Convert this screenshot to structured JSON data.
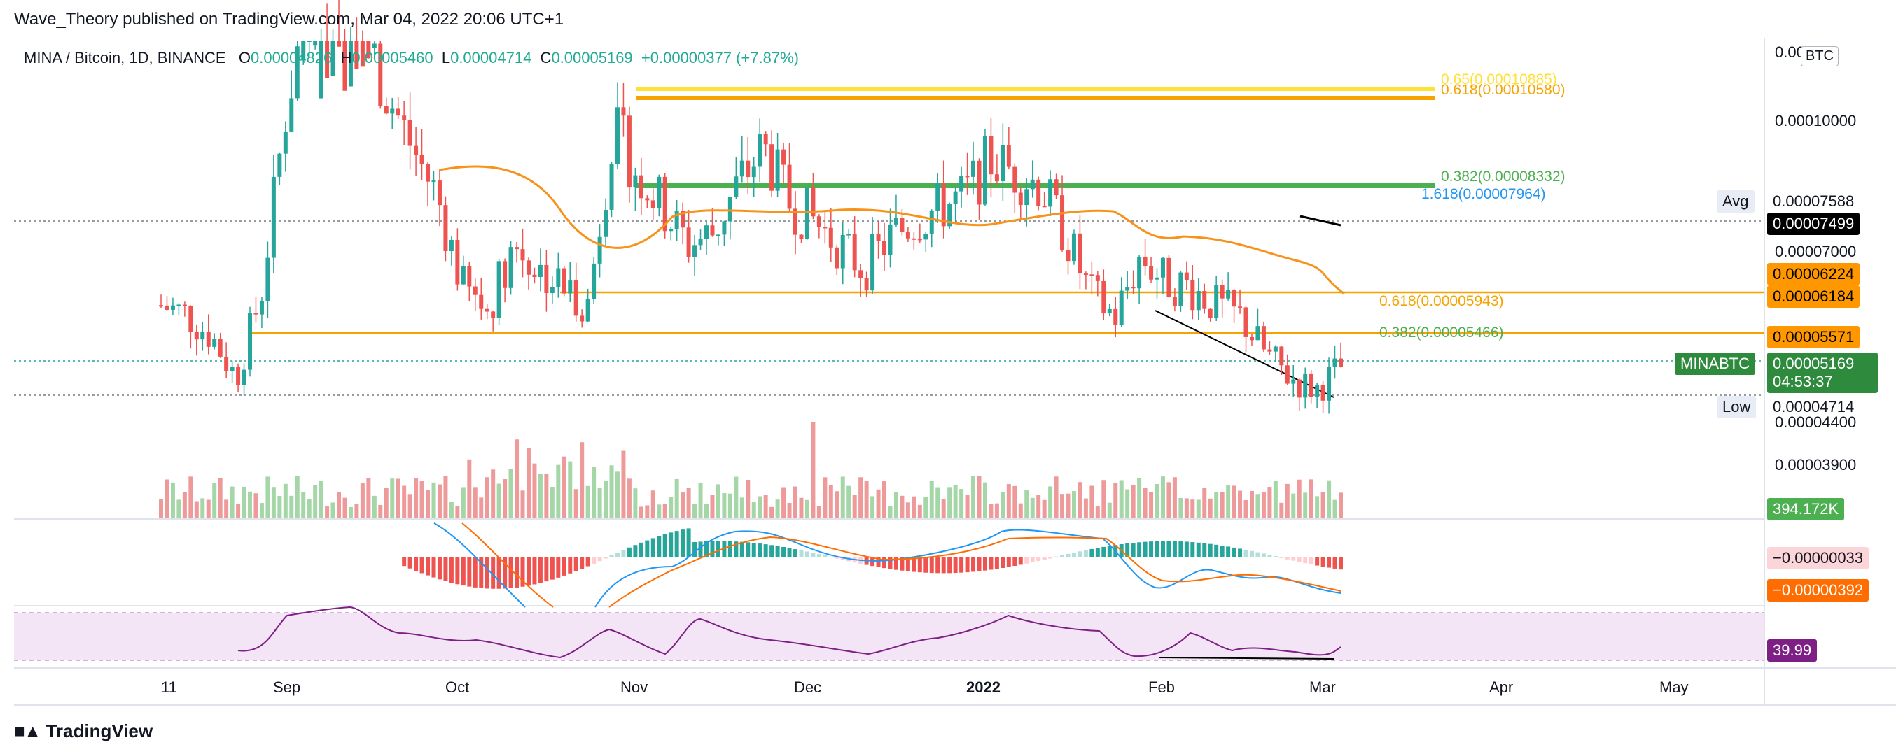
{
  "header": {
    "published": "Wave_Theory published on TradingView.com, Mar 04, 2022 20:06 UTC+1",
    "symbol": "MINA / Bitcoin, 1D, BINANCE",
    "open_label": "O",
    "open": "0.00004826",
    "high_label": "H",
    "high": "0.00005460",
    "low_label": "L",
    "low": "0.00004714",
    "close_label": "C",
    "close": "0.00005169",
    "change": "+0.00000377 (+7.87%)"
  },
  "currency_button": "BTC",
  "brand": "TradingView",
  "colors": {
    "up": "#26a69a",
    "down": "#ef5350",
    "ma": "#f7931a",
    "fib_yellow": "#ffe135",
    "fib_orange": "#f5a300",
    "fib_green": "#4caf50",
    "rsi": "#7e1f86",
    "macd": "#2196f3",
    "signal": "#ff6d00"
  },
  "price_axis": {
    "ticks": [
      "0.00010000",
      "0.00007000",
      "0.00004400",
      "0.00003900"
    ],
    "top_clipped": "0.000"
  },
  "price_tags": [
    {
      "id": "avg-label",
      "label": "Avg",
      "value": "0.00007588"
    },
    {
      "id": "black",
      "value": "0.00007499"
    },
    {
      "id": "orange1",
      "value": "0.00006224"
    },
    {
      "id": "orange2",
      "value": "0.00006184"
    },
    {
      "id": "orange3",
      "value": "0.00005571"
    },
    {
      "id": "symbol",
      "label": "MINABTC",
      "value": "0.00005169",
      "countdown": "04:53:37"
    },
    {
      "id": "low-label",
      "label": "Low",
      "value": "0.00004714"
    }
  ],
  "fib_labels": [
    {
      "text": "0.65(0.00010885)",
      "color": "#ffe135"
    },
    {
      "text": "0.618(0.00010580)",
      "color": "#f5a300"
    },
    {
      "text": "0.382(0.00008332)",
      "color": "#4caf50"
    },
    {
      "text": "1.618(0.00007964)",
      "color": "#2196f3"
    },
    {
      "text": "0.618(0.00005943)",
      "color": "#f5a300"
    },
    {
      "text": "0.382(0.00005466)",
      "color": "#4caf50"
    }
  ],
  "volume_tag": "394.172K",
  "macd_tags": [
    "−0.00000033",
    "−0.00000392"
  ],
  "rsi_tag": "39.99",
  "time_axis": [
    "11",
    "Sep",
    "Oct",
    "Nov",
    "Dec",
    "2022",
    "Feb",
    "Mar",
    "Apr",
    "May"
  ],
  "chart_data": {
    "type": "candlestick",
    "title": "MINA / Bitcoin, 1D, BINANCE",
    "series": [
      {
        "name": "MINABTC",
        "values_close_approx": [
          6.2e-05,
          6.05e-05,
          5.7e-05,
          5e-05,
          6.4e-05,
          9.5e-05,
          0.000115,
          0.000118,
          0.000108,
          9.7e-05,
          8.8e-05,
          8e-05,
          6.5e-05,
          6.1e-05,
          7.2e-05,
          6.8e-05,
          6.5e-05,
          6.2e-05,
          9.1e-05,
          8.4e-05,
          7.8e-05,
          7.2e-05,
          7.4e-05,
          8.2e-05,
          8.8e-05,
          7.9e-05,
          7.6e-05,
          7.2e-05,
          6.8e-05,
          7.3e-05,
          7.6e-05,
          7.8e-05,
          8e-05,
          8.6e-05,
          8.4e-05,
          8.2e-05,
          7.4e-05,
          6.4e-05,
          6e-05,
          7e-05,
          6.6e-05,
          6.5e-05,
          6.2e-05,
          6e-05,
          5.4e-05,
          5e-05,
          4.8e-05,
          5.17e-05
        ]
      }
    ],
    "horizontal_levels": [
      0.00010885,
      0.0001058,
      8.332e-05,
      7.964e-05,
      5.943e-05,
      5.466e-05,
      7.588e-05,
      4.714e-05
    ],
    "indicators": [
      "Volume",
      "MA",
      "MACD",
      "RSI"
    ],
    "rsi_last": 39.99
  }
}
